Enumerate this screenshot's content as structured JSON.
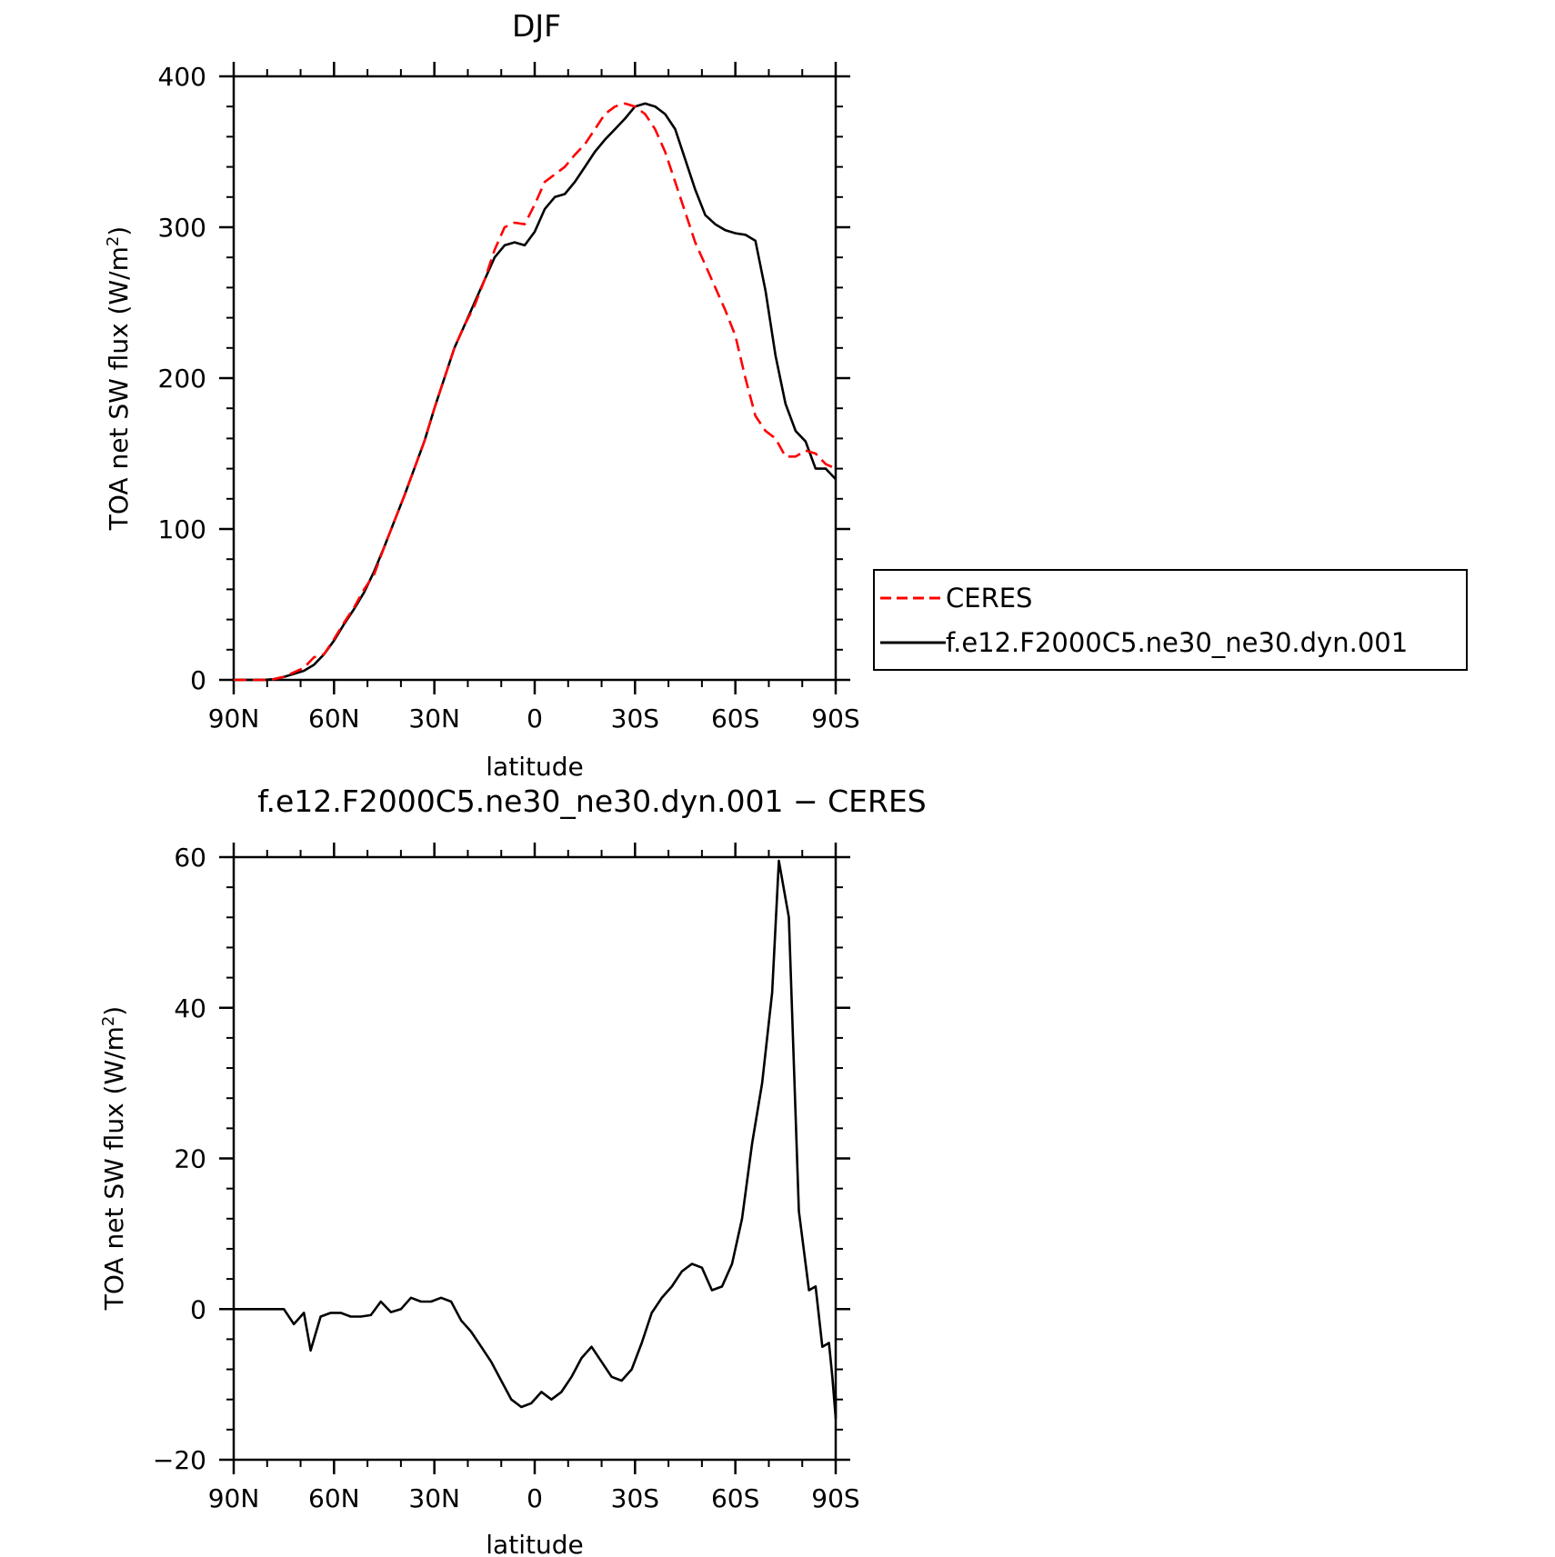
{
  "chart_data": [
    {
      "type": "line",
      "title": "DJF",
      "xlabel": "latitude",
      "ylabel": "TOA net SW flux (W/m",
      "ylabel_sup": "2",
      "ylabel_close": ")",
      "xlim": [
        90,
        -90
      ],
      "ylim": [
        0,
        400
      ],
      "xticks": [
        90,
        60,
        30,
        0,
        -30,
        -60,
        -90
      ],
      "xtick_labels": [
        "90N",
        "60N",
        "30N",
        "0",
        "30S",
        "60S",
        "90S"
      ],
      "yticks": [
        0,
        100,
        200,
        300,
        400
      ],
      "ytick_labels": [
        "0",
        "100",
        "200",
        "300",
        "400"
      ],
      "legend": {
        "placement": "right"
      },
      "series": [
        {
          "name": "CERES",
          "color": "#ff0000",
          "style": "dashed",
          "points": [
            [
              90,
              0
            ],
            [
              87,
              0
            ],
            [
              84,
              0
            ],
            [
              81,
              0
            ],
            [
              78,
              0.5
            ],
            [
              75,
              2
            ],
            [
              72,
              5
            ],
            [
              69,
              8
            ],
            [
              66,
              15
            ],
            [
              63,
              17
            ],
            [
              60,
              27
            ],
            [
              57,
              38
            ],
            [
              54,
              48
            ],
            [
              51,
              60
            ],
            [
              48,
              70
            ],
            [
              45,
              88
            ],
            [
              42,
              105
            ],
            [
              39,
              122
            ],
            [
              36,
              140
            ],
            [
              33,
              158
            ],
            [
              30,
              180
            ],
            [
              27,
              200
            ],
            [
              24,
              220
            ],
            [
              21,
              235
            ],
            [
              18,
              248
            ],
            [
              15,
              265
            ],
            [
              12,
              285
            ],
            [
              9,
              300
            ],
            [
              6,
              303
            ],
            [
              3,
              302
            ],
            [
              0,
              315
            ],
            [
              -3,
              330
            ],
            [
              -6,
              335
            ],
            [
              -9,
              340
            ],
            [
              -12,
              348
            ],
            [
              -15,
              355
            ],
            [
              -18,
              365
            ],
            [
              -21,
              375
            ],
            [
              -24,
              380
            ],
            [
              -27,
              382
            ],
            [
              -30,
              380
            ],
            [
              -33,
              375
            ],
            [
              -36,
              365
            ],
            [
              -39,
              350
            ],
            [
              -42,
              330
            ],
            [
              -45,
              310
            ],
            [
              -48,
              290
            ],
            [
              -51,
              275
            ],
            [
              -54,
              260
            ],
            [
              -57,
              245
            ],
            [
              -60,
              228
            ],
            [
              -63,
              200
            ],
            [
              -66,
              175
            ],
            [
              -69,
              165
            ],
            [
              -72,
              160
            ],
            [
              -75,
              148
            ],
            [
              -78,
              148
            ],
            [
              -81,
              152
            ],
            [
              -84,
              150
            ],
            [
              -87,
              143
            ],
            [
              -90,
              140
            ]
          ]
        },
        {
          "name": "f.e12.F2000C5.ne30_ne30.dyn.001",
          "color": "#000000",
          "style": "solid",
          "points": [
            [
              90,
              0
            ],
            [
              87,
              0
            ],
            [
              84,
              0
            ],
            [
              81,
              0
            ],
            [
              78,
              0.5
            ],
            [
              75,
              2
            ],
            [
              72,
              4
            ],
            [
              69,
              6
            ],
            [
              66,
              10
            ],
            [
              63,
              17
            ],
            [
              60,
              26
            ],
            [
              57,
              37
            ],
            [
              54,
              47
            ],
            [
              51,
              58
            ],
            [
              48,
              72
            ],
            [
              45,
              88
            ],
            [
              42,
              105
            ],
            [
              39,
              122
            ],
            [
              36,
              140
            ],
            [
              33,
              158
            ],
            [
              30,
              180
            ],
            [
              27,
              200
            ],
            [
              24,
              220
            ],
            [
              21,
              235
            ],
            [
              18,
              250
            ],
            [
              15,
              265
            ],
            [
              12,
              280
            ],
            [
              9,
              288
            ],
            [
              6,
              290
            ],
            [
              3,
              288
            ],
            [
              0,
              297
            ],
            [
              -3,
              312
            ],
            [
              -6,
              320
            ],
            [
              -9,
              322
            ],
            [
              -12,
              330
            ],
            [
              -15,
              340
            ],
            [
              -18,
              350
            ],
            [
              -21,
              358
            ],
            [
              -24,
              365
            ],
            [
              -27,
              372
            ],
            [
              -30,
              380
            ],
            [
              -33,
              382
            ],
            [
              -36,
              380
            ],
            [
              -39,
              375
            ],
            [
              -42,
              365
            ],
            [
              -45,
              345
            ],
            [
              -48,
              325
            ],
            [
              -51,
              308
            ],
            [
              -54,
              302
            ],
            [
              -57,
              298
            ],
            [
              -60,
              296
            ],
            [
              -63,
              295
            ],
            [
              -66,
              291
            ],
            [
              -69,
              258
            ],
            [
              -72,
              215
            ],
            [
              -75,
              183
            ],
            [
              -78,
              165
            ],
            [
              -81,
              158
            ],
            [
              -84,
              140
            ],
            [
              -87,
              140
            ],
            [
              -90,
              133
            ]
          ]
        }
      ]
    },
    {
      "type": "line",
      "title": "f.e12.F2000C5.ne30_ne30.dyn.001 − CERES",
      "xlabel": "latitude",
      "ylabel": "TOA net SW flux (W/m",
      "ylabel_sup": "2",
      "ylabel_close": ")",
      "xlim": [
        90,
        -90
      ],
      "ylim": [
        -20,
        60
      ],
      "xticks": [
        90,
        60,
        30,
        0,
        -30,
        -60,
        -90
      ],
      "xtick_labels": [
        "90N",
        "60N",
        "30N",
        "0",
        "30S",
        "60S",
        "90S"
      ],
      "yticks": [
        -20,
        0,
        20,
        40,
        60
      ],
      "ytick_labels": [
        "−20",
        "0",
        "20",
        "40",
        "60"
      ],
      "series": [
        {
          "color": "#000000",
          "style": "solid",
          "points": [
            [
              90,
              0
            ],
            [
              87,
              0
            ],
            [
              84,
              0
            ],
            [
              81,
              0
            ],
            [
              78,
              0
            ],
            [
              75,
              0
            ],
            [
              72,
              -2
            ],
            [
              69,
              -0.5
            ],
            [
              67,
              -5.5
            ],
            [
              64,
              -1
            ],
            [
              61,
              -0.5
            ],
            [
              58,
              -0.5
            ],
            [
              55,
              -1
            ],
            [
              52,
              -1
            ],
            [
              49,
              -0.8
            ],
            [
              46,
              1
            ],
            [
              43,
              -0.4
            ],
            [
              40,
              0
            ],
            [
              37,
              1.5
            ],
            [
              34,
              1
            ],
            [
              31,
              1
            ],
            [
              28,
              1.5
            ],
            [
              25,
              1
            ],
            [
              22,
              -1.5
            ],
            [
              19,
              -3
            ],
            [
              16,
              -5
            ],
            [
              13,
              -7
            ],
            [
              10,
              -9.5
            ],
            [
              7,
              -12
            ],
            [
              4,
              -13
            ],
            [
              1,
              -12.5
            ],
            [
              -2,
              -11
            ],
            [
              -5,
              -12
            ],
            [
              -8,
              -11
            ],
            [
              -11,
              -9
            ],
            [
              -14,
              -6.5
            ],
            [
              -17,
              -5
            ],
            [
              -20,
              -7
            ],
            [
              -23,
              -9
            ],
            [
              -26,
              -9.5
            ],
            [
              -29,
              -8
            ],
            [
              -32,
              -4.5
            ],
            [
              -35,
              -0.5
            ],
            [
              -38,
              1.5
            ],
            [
              -41,
              3
            ],
            [
              -44,
              5
            ],
            [
              -47,
              6
            ],
            [
              -50,
              5.5
            ],
            [
              -53,
              2.5
            ],
            [
              -56,
              3
            ],
            [
              -59,
              6
            ],
            [
              -62,
              12
            ],
            [
              -65,
              22
            ],
            [
              -68,
              30
            ],
            [
              -71,
              42
            ],
            [
              -73,
              59.5
            ],
            [
              -76,
              52
            ],
            [
              -79,
              13
            ],
            [
              -82,
              2.5
            ],
            [
              -84,
              3
            ],
            [
              -86,
              -5
            ],
            [
              -88,
              -4.5
            ],
            [
              -89,
              -9
            ],
            [
              -90,
              -14.5
            ],
            [
              -90,
              -11.5
            ]
          ]
        }
      ]
    }
  ]
}
